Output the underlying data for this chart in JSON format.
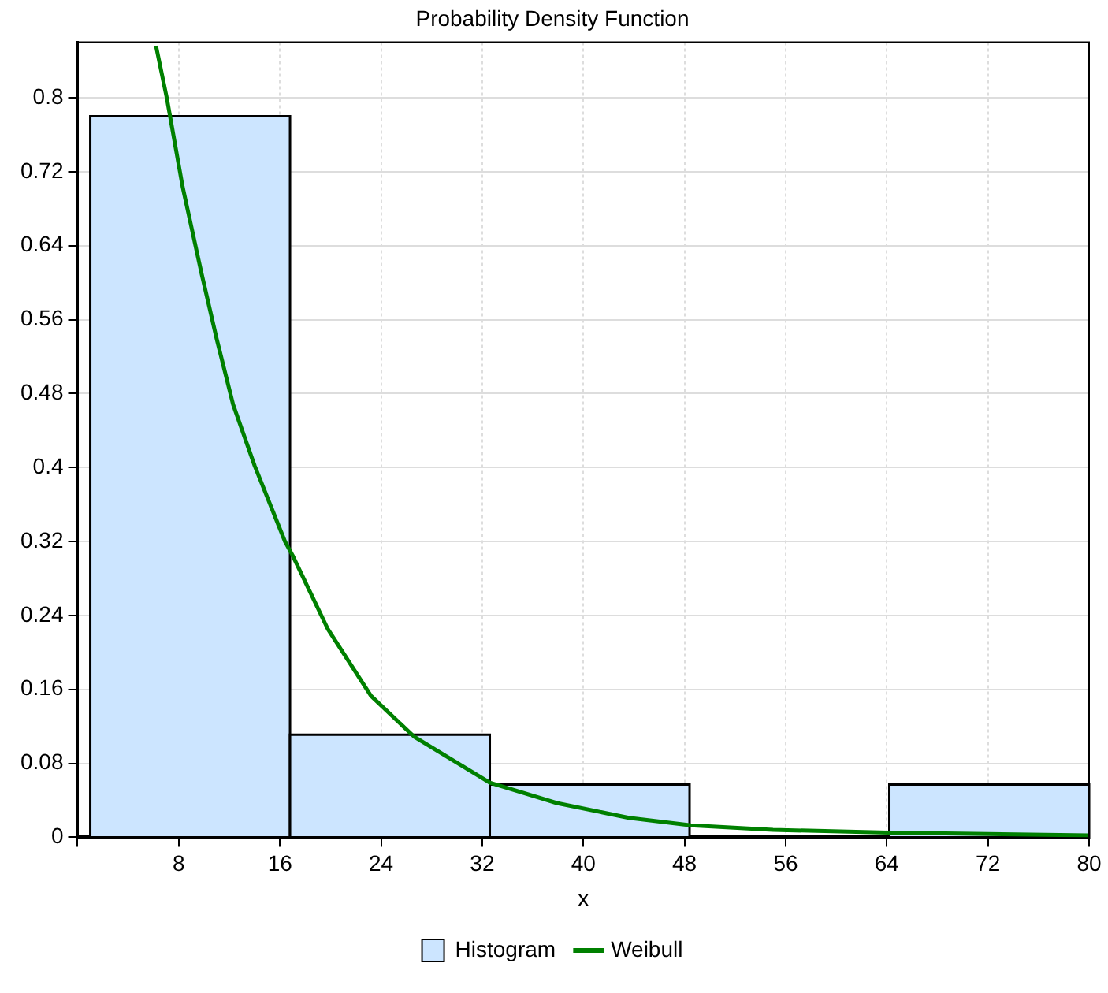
{
  "chart_data": {
    "type": "histogram",
    "title": "Probability Density Function",
    "xlabel": "x",
    "xlim": [
      0,
      80
    ],
    "xticks": [
      {
        "value": 0,
        "label": null
      },
      8,
      16,
      24,
      32,
      40,
      48,
      56,
      64,
      72,
      80
    ],
    "ylim": [
      0,
      0.86
    ],
    "yticks": [
      0,
      0.08,
      0.16,
      0.24,
      0.32,
      0.4,
      0.48,
      0.56,
      0.64,
      0.72,
      0.8
    ],
    "grid": true,
    "legend": "bottom",
    "series": [
      {
        "name": "Histogram",
        "color": "#cce5ff",
        "bins": [
          1.0,
          16.8,
          32.6,
          48.4,
          64.2,
          80
        ],
        "values": [
          0.78,
          0.111,
          0.057,
          0,
          0.057
        ]
      },
      {
        "name": "Weibull",
        "type": "line",
        "color": "#008000",
        "x": [
          6.2,
          7.05,
          8.3,
          9.8,
          11.0,
          12.3,
          14.0,
          16.4,
          17.0,
          19.8,
          23.2,
          26.6,
          32.6,
          37.9,
          43.6,
          48.5,
          55.0,
          64.1,
          80
        ],
        "values": [
          0.856,
          0.8,
          0.704,
          0.61,
          0.539,
          0.468,
          0.402,
          0.32,
          0.305,
          0.225,
          0.153,
          0.109,
          0.059,
          0.037,
          0.021,
          0.013,
          0.008,
          0.005,
          0.002
        ]
      }
    ]
  }
}
